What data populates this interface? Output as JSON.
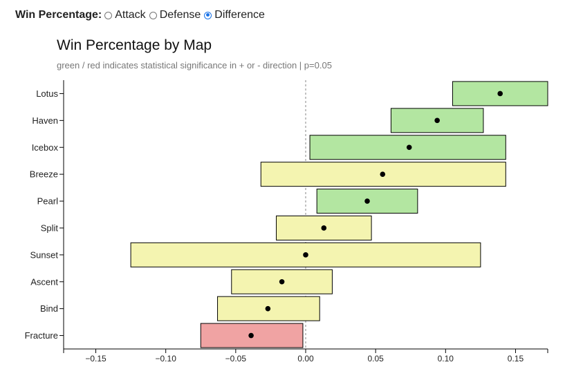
{
  "controls": {
    "label": "Win Percentage:",
    "options": [
      {
        "label": "Attack",
        "checked": false
      },
      {
        "label": "Defense",
        "checked": false
      },
      {
        "label": "Difference",
        "checked": true
      }
    ]
  },
  "chart_data": {
    "type": "interval",
    "title": "Win Percentage by Map",
    "subtitle": "green / red indicates statistical significance in + or - direction | p=0.05",
    "xlim": [
      -0.173,
      0.173
    ],
    "x_ticks": [
      -0.15,
      -0.1,
      -0.05,
      0.0,
      0.05,
      0.1,
      0.15
    ],
    "x_tick_labels": [
      "−0.15",
      "−0.10",
      "−0.05",
      "0.00",
      "0.05",
      "0.10",
      "0.15"
    ],
    "reference_line": 0,
    "colors": {
      "positive": "#b3e6a1",
      "neutral": "#f4f4b0",
      "negative": "#f0a3a3"
    },
    "categories": [
      "Lotus",
      "Haven",
      "Icebox",
      "Breeze",
      "Pearl",
      "Split",
      "Sunset",
      "Ascent",
      "Bind",
      "Fracture"
    ],
    "points": [
      0.139,
      0.094,
      0.074,
      0.055,
      0.044,
      0.013,
      0.0,
      -0.017,
      -0.027,
      -0.039
    ],
    "lower": [
      0.105,
      0.061,
      0.003,
      -0.032,
      0.008,
      -0.021,
      -0.125,
      -0.053,
      -0.063,
      -0.075
    ],
    "upper": [
      0.173,
      0.127,
      0.143,
      0.143,
      0.08,
      0.047,
      0.125,
      0.019,
      0.01,
      -0.002
    ],
    "significance": [
      "positive",
      "positive",
      "positive",
      "neutral",
      "positive",
      "neutral",
      "neutral",
      "neutral",
      "neutral",
      "negative"
    ]
  }
}
